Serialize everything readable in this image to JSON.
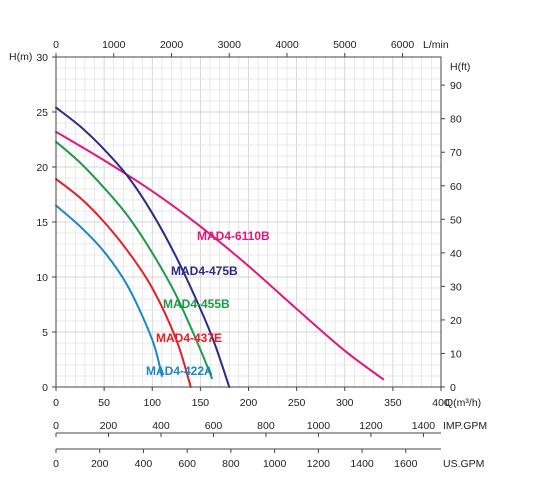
{
  "chart_data": {
    "type": "line",
    "axes": {
      "x_bottom": {
        "label": "Q(m³/h)",
        "range": [
          0,
          400
        ],
        "ticks": [
          "0",
          "50",
          "100",
          "150",
          "200",
          "250",
          "300",
          "350",
          "400"
        ]
      },
      "x_top": {
        "label": "L/min",
        "range": [
          0,
          6666.7
        ],
        "ticks": [
          "0",
          "1000",
          "2000",
          "3000",
          "4000",
          "5000",
          "6000"
        ]
      },
      "y_left": {
        "label": "H(m)",
        "range": [
          0,
          30
        ],
        "ticks": [
          "0",
          "5",
          "10",
          "15",
          "20",
          "25",
          "30"
        ]
      },
      "y_right": {
        "label": "H(ft)",
        "range": [
          0,
          98.4
        ],
        "ticks": [
          "0",
          "10",
          "20",
          "30",
          "40",
          "50",
          "60",
          "70",
          "80",
          "90"
        ]
      },
      "imp_gpm": {
        "label": "IMP.GPM",
        "range": [
          0,
          1467
        ],
        "ticks": [
          "0",
          "200",
          "400",
          "600",
          "800",
          "1000",
          "1200",
          "1400"
        ]
      },
      "us_gpm": {
        "label": "US.GPM",
        "range": [
          0,
          1761
        ],
        "ticks": [
          "0",
          "200",
          "400",
          "600",
          "800",
          "1000",
          "1200",
          "1400",
          "1600"
        ]
      }
    },
    "grid": true,
    "series": [
      {
        "name": "MAD4-6110B",
        "color": "#e0187a",
        "x": [
          0,
          50,
          100,
          150,
          200,
          250,
          300,
          340
        ],
        "y": [
          23.2,
          20.6,
          17.8,
          14.6,
          11.0,
          7.1,
          3.3,
          0.7
        ]
      },
      {
        "name": "MAD4-475B",
        "color": "#2b2a86",
        "x": [
          0,
          25,
          50,
          75,
          100,
          125,
          150,
          165,
          180
        ],
        "y": [
          25.4,
          23.7,
          21.6,
          19.1,
          15.8,
          11.8,
          7.1,
          3.9,
          0
        ]
      },
      {
        "name": "MAD4-455B",
        "color": "#1f9a4a",
        "x": [
          0,
          25,
          50,
          75,
          100,
          125,
          150,
          162
        ],
        "y": [
          22.3,
          20.4,
          18.1,
          15.5,
          12.2,
          8.3,
          3.4,
          0.8
        ]
      },
      {
        "name": "MAD4-437E",
        "color": "#e21e26",
        "x": [
          0,
          25,
          50,
          75,
          100,
          125,
          140
        ],
        "y": [
          18.9,
          17.2,
          15.0,
          12.3,
          9.0,
          4.3,
          0
        ]
      },
      {
        "name": "MAD4-422A",
        "color": "#1b87c7",
        "x": [
          0,
          25,
          50,
          75,
          100,
          110
        ],
        "y": [
          16.5,
          14.6,
          12.3,
          9.1,
          4.3,
          1.0
        ]
      }
    ]
  }
}
